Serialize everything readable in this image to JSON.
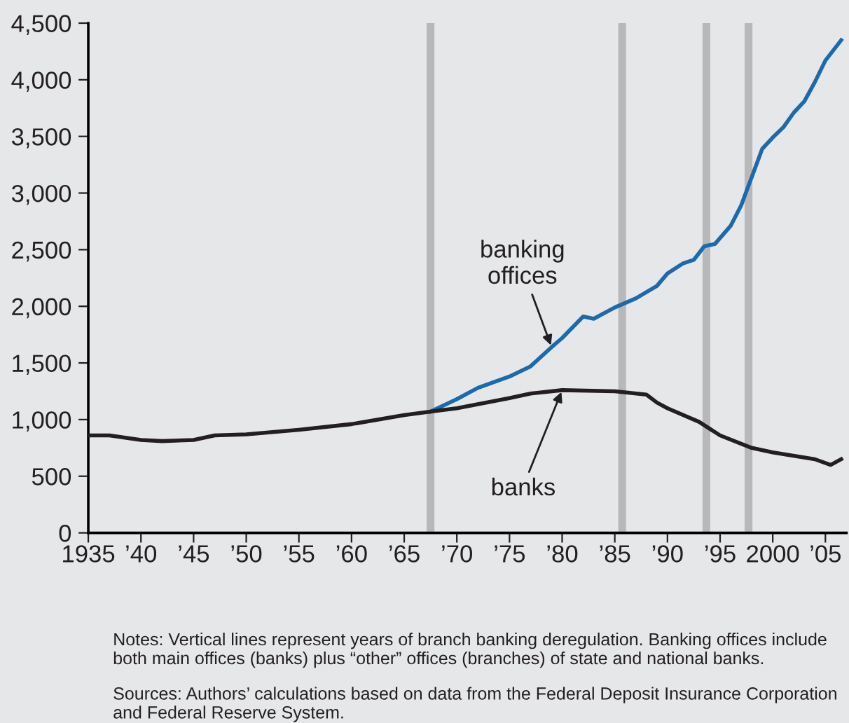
{
  "chart_data": {
    "type": "line",
    "series": [
      {
        "name": "banking offices",
        "color": "#1a6aad",
        "x": [
          1967.5,
          1970,
          1972,
          1975,
          1977,
          1979,
          1980,
          1982,
          1983,
          1985,
          1987,
          1989,
          1990,
          1991.5,
          1992.5,
          1993.5,
          1994.5,
          1996,
          1997,
          1998,
          1999,
          2000,
          2001,
          2002,
          2003,
          2004,
          2005,
          2006.5
        ],
        "values": [
          1070,
          1180,
          1280,
          1380,
          1470,
          1640,
          1720,
          1910,
          1890,
          1990,
          2070,
          2180,
          2290,
          2380,
          2410,
          2530,
          2550,
          2710,
          2890,
          3140,
          3390,
          3490,
          3580,
          3710,
          3810,
          3980,
          4170,
          4350
        ]
      },
      {
        "name": "banks",
        "color": "#231f20",
        "x": [
          1935,
          1937,
          1940,
          1942,
          1945,
          1947,
          1950,
          1955,
          1960,
          1965,
          1967.5,
          1970,
          1975,
          1977,
          1980,
          1985,
          1988,
          1989,
          1990,
          1993,
          1995,
          1998,
          2000,
          2004,
          2005.5,
          2006.5
        ],
        "values": [
          860,
          860,
          820,
          810,
          820,
          860,
          870,
          910,
          960,
          1040,
          1070,
          1100,
          1190,
          1230,
          1260,
          1250,
          1220,
          1150,
          1100,
          980,
          860,
          750,
          710,
          650,
          600,
          650
        ]
      }
    ],
    "xlim": [
      1935,
      2007
    ],
    "xticks": [
      1935,
      {
        "value": 1940,
        "label": "’40"
      },
      {
        "value": 1945,
        "label": "’45"
      },
      {
        "value": 1950,
        "label": "’50"
      },
      {
        "value": 1955,
        "label": "’55"
      },
      {
        "value": 1960,
        "label": "’60"
      },
      {
        "value": 1965,
        "label": "’65"
      },
      {
        "value": 1970,
        "label": "’70"
      },
      {
        "value": 1975,
        "label": "’75"
      },
      {
        "value": 1980,
        "label": "’80"
      },
      {
        "value": 1985,
        "label": "’85"
      },
      {
        "value": 1990,
        "label": "’90"
      },
      {
        "value": 1995,
        "label": "’95"
      },
      2000,
      {
        "value": 2005,
        "label": "’05"
      }
    ],
    "ylim": [
      0,
      4500
    ],
    "yticks": [
      0,
      500,
      {
        "value": 1000,
        "label": "1,000"
      },
      {
        "value": 1500,
        "label": "1,500"
      },
      {
        "value": 2000,
        "label": "2,000"
      },
      {
        "value": 2500,
        "label": "2,500"
      },
      {
        "value": 3000,
        "label": "3,000"
      },
      {
        "value": 3500,
        "label": "3,500"
      },
      {
        "value": 4000,
        "label": "4,000"
      },
      {
        "value": 4500,
        "label": "4,500"
      }
    ],
    "ref_lines": [
      {
        "axis": "x",
        "value": 1967.5,
        "color": "#b8b8b8"
      },
      {
        "axis": "x",
        "value": 1985.7,
        "color": "#b8b8b8"
      },
      {
        "axis": "x",
        "value": 1993.7,
        "color": "#b8b8b8"
      },
      {
        "axis": "x",
        "value": 1997.7,
        "color": "#b8b8b8"
      }
    ],
    "annotations": [
      "Notes: Vertical lines represent years of branch banking deregulation. Banking offices include both main offices (banks) plus “other” offices (branches) of state and national banks.",
      "Sources: Authors’ calculations based on data from the Federal Deposit Insurance Corporation and Federal Reserve System."
    ],
    "grid": false,
    "legend": false,
    "marker": "none",
    "line_style": "solid"
  }
}
